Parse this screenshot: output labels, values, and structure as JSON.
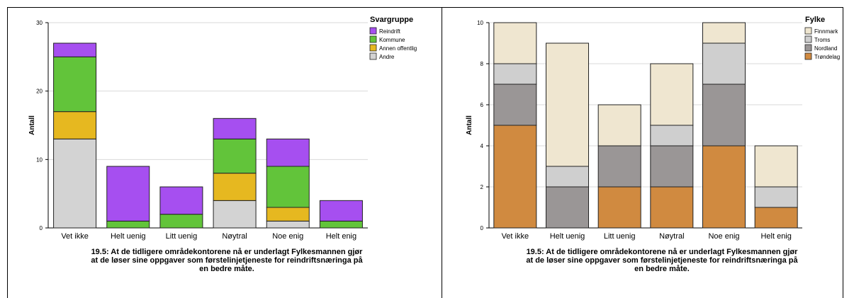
{
  "chart_data": [
    {
      "type": "bar",
      "stacked": true,
      "categories": [
        "Vet ikke",
        "Helt uenig",
        "Litt uenig",
        "Nøytral",
        "Noe enig",
        "Helt enig"
      ],
      "ylabel": "Antall",
      "ylim": [
        0,
        30
      ],
      "yticks": [
        0,
        10,
        20,
        30
      ],
      "legend_title": "Svargruppe",
      "legend_position": "top-right",
      "grid": true,
      "caption": "19.5: At de tidligere områdekontorene nå er underlagt Fylkesmannen gjør\nat de løser sine oppgaver som førstelinjetjeneste for reindriftsnæringa på\nen bedre måte.",
      "series": [
        {
          "name": "Andre",
          "color": "#d3d3d3",
          "values": [
            13,
            0,
            0,
            4,
            1,
            0
          ]
        },
        {
          "name": "Annen offentlig",
          "color": "#e6b820",
          "values": [
            4,
            0,
            0,
            4,
            2,
            0
          ]
        },
        {
          "name": "Kommune",
          "color": "#62c43a",
          "values": [
            8,
            1,
            2,
            5,
            6,
            1
          ]
        },
        {
          "name": "Reindrift",
          "color": "#a64ff0",
          "values": [
            2,
            8,
            4,
            3,
            4,
            3
          ]
        }
      ],
      "legend_order": [
        "Reindrift",
        "Kommune",
        "Annen offentlig",
        "Andre"
      ]
    },
    {
      "type": "bar",
      "stacked": true,
      "categories": [
        "Vet ikke",
        "Helt uenig",
        "Litt uenig",
        "Nøytral",
        "Noe enig",
        "Helt enig"
      ],
      "ylabel": "Antall",
      "ylim": [
        0,
        10
      ],
      "yticks": [
        0,
        2,
        4,
        6,
        8,
        10
      ],
      "legend_title": "Fylke",
      "legend_position": "top-right",
      "grid": true,
      "caption": "19.5: At de tidligere områdekontorene nå er underlagt Fylkesmannen gjør\nat de løser sine oppgaver som førstelinjetjeneste for reindriftsnæringa på\nen bedre måte.",
      "series": [
        {
          "name": "Trøndelag",
          "color": "#d08a40",
          "values": [
            5,
            0,
            2,
            2,
            4,
            1
          ]
        },
        {
          "name": "Nordland",
          "color": "#9a9696",
          "values": [
            2,
            2,
            2,
            2,
            3,
            0
          ]
        },
        {
          "name": "Troms",
          "color": "#cfcfcf",
          "values": [
            1,
            1,
            0,
            1,
            2,
            1
          ]
        },
        {
          "name": "Finnmark",
          "color": "#efe6d0",
          "values": [
            2,
            6,
            2,
            3,
            1,
            2
          ]
        }
      ],
      "legend_order": [
        "Finnmark",
        "Troms",
        "Nordland",
        "Trøndelag"
      ]
    }
  ]
}
